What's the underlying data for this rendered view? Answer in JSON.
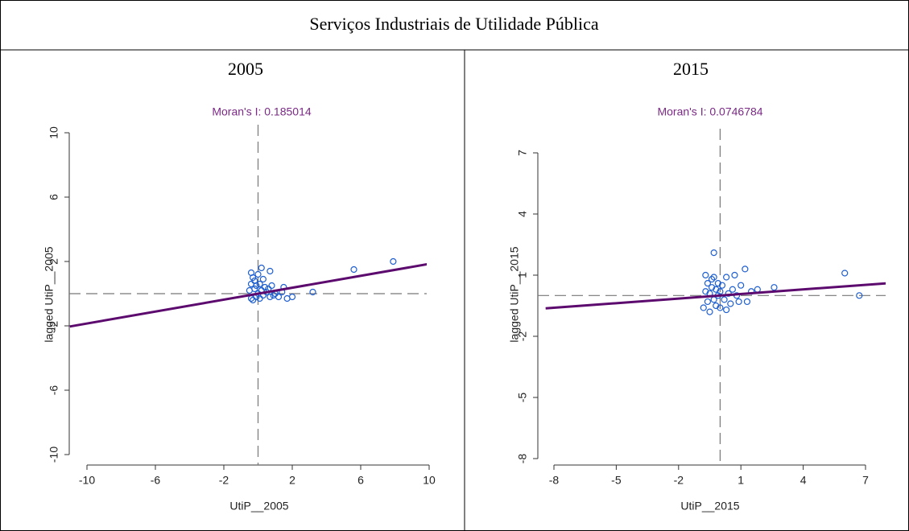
{
  "table": {
    "title": "Serviços Industriais de Utilidade Pública",
    "headers": [
      "2005",
      "2015"
    ]
  },
  "chart_data": [
    {
      "type": "scatter",
      "title": "Moran's I: 0.185014",
      "x_label": "UtiP__2005",
      "y_label": "lagged UtiP__2005",
      "color": "#1f5fd0",
      "title_color": "#7b2a86",
      "xlim": [
        -10,
        10
      ],
      "xticks": [
        -10,
        -6,
        -2,
        2,
        6,
        10
      ],
      "ylim": [
        -10,
        10
      ],
      "yticks": [
        -10,
        -6,
        -2,
        2,
        6,
        10
      ],
      "x": [
        -0.5,
        -0.4,
        -0.4,
        -0.3,
        -0.3,
        -0.2,
        -0.2,
        -0.1,
        -0.1,
        0,
        0,
        0.1,
        0.1,
        0.2,
        0.2,
        0.3,
        0.3,
        0.4,
        0.5,
        0.6,
        0.7,
        0.8,
        1.0,
        1.2,
        1.4,
        1.5,
        1.7,
        2.0,
        0.7,
        0.2,
        -0.4,
        3.2,
        5.6,
        7.9,
        0.9
      ],
      "y": [
        0.2,
        -0.3,
        0.6,
        1.0,
        -0.4,
        0.3,
        0.8,
        -0.2,
        0.5,
        1.2,
        0,
        -0.3,
        0.6,
        1.6,
        0.2,
        0.9,
        -0.1,
        0.4,
        0.1,
        0.3,
        -0.2,
        0.5,
        0,
        -0.2,
        0.1,
        0.4,
        -0.3,
        -0.2,
        1.4,
        0.2,
        1.3,
        0.1,
        1.5,
        2.0,
        -0.1
      ],
      "fit_line": {
        "color": "#5c0a6e",
        "x": [
          -11,
          10
        ],
        "y": [
          -2.04,
          1.85
        ]
      },
      "reference_lines": {
        "x": 0,
        "y": 0,
        "color": "#777777"
      }
    },
    {
      "type": "scatter",
      "title": "Moran's I: 0.0746784",
      "x_label": "UtiP__2015",
      "y_label": "lagged UtiP__2015",
      "color": "#1f5fd0",
      "title_color": "#7b2a86",
      "xlim": [
        -8,
        7
      ],
      "xticks": [
        -8,
        -5,
        -2,
        1,
        4,
        7
      ],
      "ylim": [
        -8,
        7
      ],
      "yticks": [
        -8,
        -5,
        -2,
        1,
        4,
        7
      ],
      "x": [
        -0.8,
        -0.7,
        -0.7,
        -0.6,
        -0.6,
        -0.5,
        -0.5,
        -0.4,
        -0.4,
        -0.3,
        -0.3,
        -0.2,
        -0.2,
        -0.1,
        -0.1,
        0,
        0,
        0.1,
        0.2,
        0.3,
        0.4,
        0.5,
        0.6,
        0.7,
        0.8,
        0.9,
        1.0,
        1.2,
        1.3,
        1.5,
        1.8,
        2.6,
        -0.3,
        6.0,
        6.7,
        0.3
      ],
      "y": [
        -0.6,
        0.2,
        1.0,
        -0.3,
        0.6,
        0.1,
        -0.8,
        0.4,
        0.8,
        -0.2,
        2.1,
        0.3,
        -0.5,
        0.6,
        0,
        0.2,
        -0.6,
        0.5,
        -0.2,
        0.9,
        0.1,
        -0.4,
        0.3,
        1.0,
        0.0,
        -0.3,
        0.5,
        1.3,
        -0.3,
        0.2,
        0.3,
        0.4,
        0.9,
        1.1,
        0.0,
        -0.7
      ],
      "fit_line": {
        "color": "#5c0a6e",
        "x": [
          -8.4,
          8
        ],
        "y": [
          -0.63,
          0.6
        ]
      },
      "reference_lines": {
        "x": 0,
        "y": 0,
        "color": "#777777"
      }
    }
  ]
}
